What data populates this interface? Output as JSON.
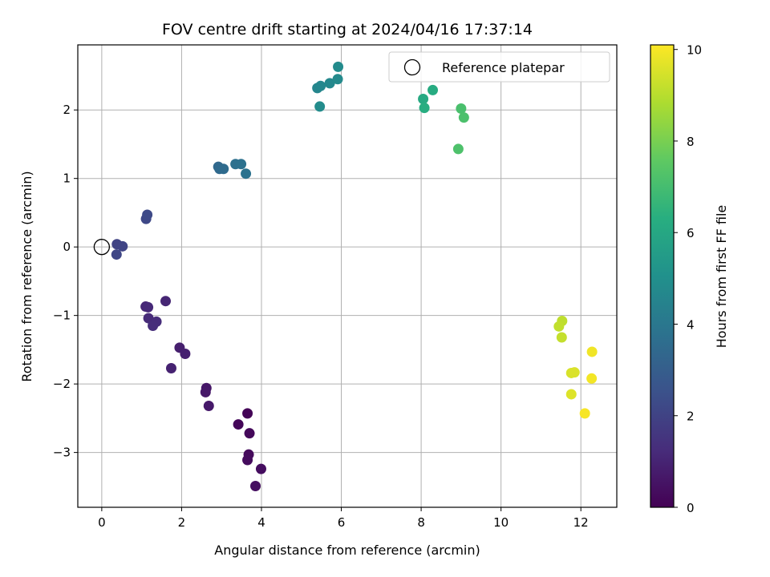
{
  "chart_data": {
    "type": "scatter",
    "title": "FOV centre drift starting at 2024/04/16 17:37:14",
    "xlabel": "Angular distance from reference (arcmin)",
    "ylabel": "Rotation from reference (arcmin)",
    "xlim": [
      -0.6,
      12.9
    ],
    "ylim": [
      -3.8,
      2.95
    ],
    "xticks": [
      0,
      2,
      4,
      6,
      8,
      10,
      12
    ],
    "yticks": [
      -3,
      -2,
      -1,
      0,
      1,
      2
    ],
    "xtick_labels": [
      "0",
      "2",
      "4",
      "6",
      "8",
      "10",
      "12"
    ],
    "ytick_labels": [
      "−3",
      "−2",
      "−1",
      "0",
      "1",
      "2"
    ],
    "grid": true,
    "legend": {
      "position": "top-right",
      "entries": [
        {
          "label": "Reference platepar",
          "marker": "open-circle"
        }
      ]
    },
    "reference_point": {
      "x": 0,
      "y": 0
    },
    "colorbar": {
      "label": "Hours from first FF file",
      "colormap": "viridis",
      "range": [
        0,
        10.1
      ],
      "ticks": [
        0,
        2,
        4,
        6,
        8,
        10
      ],
      "tick_labels": [
        "0",
        "2",
        "4",
        "6",
        "8",
        "10"
      ]
    },
    "points": [
      {
        "x": 3.65,
        "y": -2.43,
        "c": 0.1
      },
      {
        "x": 3.42,
        "y": -2.59,
        "c": 0.15
      },
      {
        "x": 3.7,
        "y": -2.72,
        "c": 0.2
      },
      {
        "x": 3.68,
        "y": -3.03,
        "c": 0.25
      },
      {
        "x": 3.65,
        "y": -3.11,
        "c": 0.3
      },
      {
        "x": 3.99,
        "y": -3.24,
        "c": 0.35
      },
      {
        "x": 3.85,
        "y": -3.49,
        "c": 0.4
      },
      {
        "x": 2.62,
        "y": -2.06,
        "c": 0.6
      },
      {
        "x": 2.6,
        "y": -2.12,
        "c": 0.65
      },
      {
        "x": 2.68,
        "y": -2.32,
        "c": 0.7
      },
      {
        "x": 1.95,
        "y": -1.47,
        "c": 0.85
      },
      {
        "x": 2.09,
        "y": -1.56,
        "c": 0.9
      },
      {
        "x": 1.74,
        "y": -1.77,
        "c": 0.95
      },
      {
        "x": 1.6,
        "y": -0.79,
        "c": 1.05
      },
      {
        "x": 1.1,
        "y": -0.87,
        "c": 1.1
      },
      {
        "x": 1.16,
        "y": -0.88,
        "c": 1.15
      },
      {
        "x": 1.17,
        "y": -1.04,
        "c": 1.2
      },
      {
        "x": 1.37,
        "y": -1.09,
        "c": 1.25
      },
      {
        "x": 1.28,
        "y": -1.15,
        "c": 1.3
      },
      {
        "x": 0.38,
        "y": 0.04,
        "c": 2.0
      },
      {
        "x": 0.52,
        "y": 0.01,
        "c": 2.05
      },
      {
        "x": 0.37,
        "y": -0.11,
        "c": 2.1
      },
      {
        "x": 1.11,
        "y": 0.41,
        "c": 2.2
      },
      {
        "x": 1.14,
        "y": 0.47,
        "c": 2.25
      },
      {
        "x": 2.92,
        "y": 1.17,
        "c": 3.4
      },
      {
        "x": 2.95,
        "y": 1.14,
        "c": 3.45
      },
      {
        "x": 3.05,
        "y": 1.14,
        "c": 3.5
      },
      {
        "x": 3.35,
        "y": 1.21,
        "c": 3.7
      },
      {
        "x": 3.49,
        "y": 1.21,
        "c": 3.75
      },
      {
        "x": 3.61,
        "y": 1.07,
        "c": 3.8
      },
      {
        "x": 5.4,
        "y": 2.32,
        "c": 4.6
      },
      {
        "x": 5.48,
        "y": 2.35,
        "c": 4.65
      },
      {
        "x": 5.71,
        "y": 2.39,
        "c": 4.7
      },
      {
        "x": 5.91,
        "y": 2.45,
        "c": 4.75
      },
      {
        "x": 5.92,
        "y": 2.63,
        "c": 4.8
      },
      {
        "x": 5.46,
        "y": 2.05,
        "c": 4.85
      },
      {
        "x": 8.05,
        "y": 2.16,
        "c": 6.1
      },
      {
        "x": 8.29,
        "y": 2.29,
        "c": 6.2
      },
      {
        "x": 8.08,
        "y": 2.03,
        "c": 6.25
      },
      {
        "x": 9.0,
        "y": 2.02,
        "c": 7.1
      },
      {
        "x": 9.07,
        "y": 1.89,
        "c": 7.15
      },
      {
        "x": 8.93,
        "y": 1.43,
        "c": 7.2
      },
      {
        "x": 11.53,
        "y": -1.08,
        "c": 9.1
      },
      {
        "x": 11.45,
        "y": -1.16,
        "c": 9.15
      },
      {
        "x": 11.52,
        "y": -1.32,
        "c": 9.2
      },
      {
        "x": 11.76,
        "y": -1.84,
        "c": 9.5
      },
      {
        "x": 11.84,
        "y": -1.83,
        "c": 9.55
      },
      {
        "x": 11.76,
        "y": -2.15,
        "c": 9.6
      },
      {
        "x": 12.28,
        "y": -1.53,
        "c": 9.9
      },
      {
        "x": 12.27,
        "y": -1.92,
        "c": 9.95
      },
      {
        "x": 12.1,
        "y": -2.43,
        "c": 10.0
      }
    ]
  }
}
